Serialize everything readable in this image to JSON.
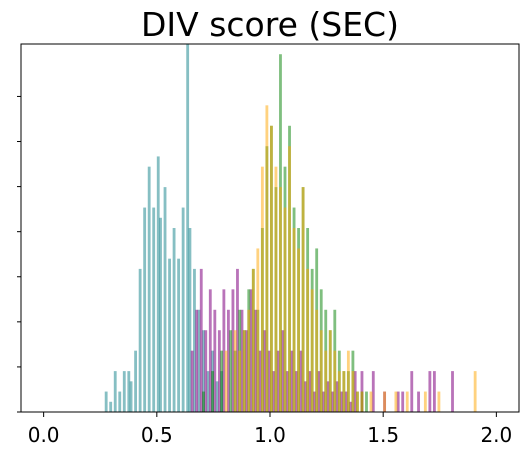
{
  "chart_data": {
    "type": "histogram",
    "title": "DIV score (SEC)",
    "xlabel": "",
    "ylabel": "",
    "xlim": [
      -0.1,
      2.1
    ],
    "ylim": [
      0,
      36
    ],
    "x_ticks": [
      0.0,
      0.5,
      1.0,
      1.5,
      2.0
    ],
    "x_tick_labels": [
      "0.0",
      "0.5",
      "1.0",
      "1.5",
      "2.0"
    ],
    "y_tick_count": 8,
    "y_tick_labels_visible": false,
    "grid": false,
    "legend": null,
    "bin_width": 0.0125,
    "series": [
      {
        "color": "#0e8088",
        "alpha": 0.5,
        "bins": [
          [
            0.27,
            2
          ],
          [
            0.29,
            1
          ],
          [
            0.31,
            4
          ],
          [
            0.33,
            2
          ],
          [
            0.35,
            4
          ],
          [
            0.37,
            4
          ],
          [
            0.38,
            3
          ],
          [
            0.4,
            6
          ],
          [
            0.42,
            14
          ],
          [
            0.44,
            20
          ],
          [
            0.46,
            24
          ],
          [
            0.48,
            20
          ],
          [
            0.5,
            25
          ],
          [
            0.51,
            19
          ],
          [
            0.53,
            22
          ],
          [
            0.55,
            15
          ],
          [
            0.57,
            18
          ],
          [
            0.59,
            15
          ],
          [
            0.61,
            20
          ],
          [
            0.63,
            36
          ],
          [
            0.64,
            18
          ],
          [
            0.66,
            14
          ],
          [
            0.68,
            10
          ],
          [
            0.7,
            8
          ],
          [
            0.72,
            4
          ],
          [
            0.74,
            6
          ],
          [
            0.76,
            3
          ],
          [
            0.78,
            4
          ]
        ]
      },
      {
        "color": "#800080",
        "alpha": 0.55,
        "bins": [
          [
            0.65,
            6
          ],
          [
            0.67,
            10
          ],
          [
            0.69,
            14
          ],
          [
            0.71,
            8
          ],
          [
            0.73,
            12
          ],
          [
            0.75,
            10
          ],
          [
            0.77,
            8
          ],
          [
            0.79,
            12
          ],
          [
            0.81,
            10
          ],
          [
            0.83,
            12
          ],
          [
            0.85,
            14
          ],
          [
            0.87,
            10
          ],
          [
            0.89,
            8
          ],
          [
            0.91,
            12
          ],
          [
            0.93,
            10
          ],
          [
            0.95,
            6
          ],
          [
            0.97,
            8
          ],
          [
            0.99,
            6
          ],
          [
            1.01,
            4
          ],
          [
            1.03,
            6
          ],
          [
            1.05,
            8
          ],
          [
            1.07,
            4
          ],
          [
            1.09,
            6
          ],
          [
            1.11,
            4
          ],
          [
            1.13,
            6
          ],
          [
            1.15,
            3
          ],
          [
            1.17,
            4
          ],
          [
            1.19,
            2
          ],
          [
            1.21,
            4
          ],
          [
            1.23,
            2
          ],
          [
            1.25,
            3
          ],
          [
            1.27,
            2
          ],
          [
            1.29,
            3
          ],
          [
            1.31,
            2
          ],
          [
            1.33,
            2
          ],
          [
            1.35,
            1
          ],
          [
            1.37,
            4
          ],
          [
            1.4,
            4
          ],
          [
            1.45,
            4
          ],
          [
            1.5,
            2
          ],
          [
            1.56,
            2
          ],
          [
            1.58,
            2
          ],
          [
            1.62,
            4
          ],
          [
            1.65,
            2
          ],
          [
            1.7,
            4
          ],
          [
            1.72,
            4
          ],
          [
            1.8,
            4
          ]
        ]
      },
      {
        "color": "#008000",
        "alpha": 0.5,
        "bins": [
          [
            0.7,
            2
          ],
          [
            0.74,
            4
          ],
          [
            0.78,
            6
          ],
          [
            0.82,
            8
          ],
          [
            0.84,
            6
          ],
          [
            0.86,
            10
          ],
          [
            0.88,
            8
          ],
          [
            0.9,
            12
          ],
          [
            0.92,
            14
          ],
          [
            0.94,
            10
          ],
          [
            0.96,
            18
          ],
          [
            0.98,
            26
          ],
          [
            1.0,
            28
          ],
          [
            1.02,
            22
          ],
          [
            1.04,
            35
          ],
          [
            1.06,
            24
          ],
          [
            1.08,
            28
          ],
          [
            1.1,
            20
          ],
          [
            1.12,
            18
          ],
          [
            1.14,
            22
          ],
          [
            1.16,
            18
          ],
          [
            1.18,
            14
          ],
          [
            1.2,
            16
          ],
          [
            1.22,
            12
          ],
          [
            1.24,
            10
          ],
          [
            1.26,
            8
          ],
          [
            1.28,
            10
          ],
          [
            1.3,
            6
          ],
          [
            1.32,
            4
          ],
          [
            1.34,
            4
          ],
          [
            1.36,
            6
          ],
          [
            1.38,
            2
          ],
          [
            1.4,
            2
          ],
          [
            1.42,
            2
          ]
        ]
      },
      {
        "color": "#ffa500",
        "alpha": 0.5,
        "bins": [
          [
            0.8,
            6
          ],
          [
            0.84,
            8
          ],
          [
            0.86,
            6
          ],
          [
            0.88,
            8
          ],
          [
            0.9,
            10
          ],
          [
            0.92,
            14
          ],
          [
            0.94,
            16
          ],
          [
            0.96,
            24
          ],
          [
            0.98,
            30
          ],
          [
            1.0,
            28
          ],
          [
            1.02,
            24
          ],
          [
            1.04,
            22
          ],
          [
            1.06,
            20
          ],
          [
            1.08,
            26
          ],
          [
            1.1,
            18
          ],
          [
            1.12,
            16
          ],
          [
            1.14,
            22
          ],
          [
            1.16,
            14
          ],
          [
            1.18,
            12
          ],
          [
            1.2,
            10
          ],
          [
            1.22,
            8
          ],
          [
            1.24,
            6
          ],
          [
            1.26,
            8
          ],
          [
            1.28,
            6
          ],
          [
            1.3,
            4
          ],
          [
            1.32,
            4
          ],
          [
            1.34,
            6
          ],
          [
            1.36,
            4
          ],
          [
            1.38,
            2
          ],
          [
            1.4,
            2
          ],
          [
            1.44,
            2
          ],
          [
            1.5,
            2
          ],
          [
            1.55,
            2
          ],
          [
            1.6,
            2
          ],
          [
            1.68,
            2
          ],
          [
            1.74,
            2
          ],
          [
            1.9,
            4
          ]
        ]
      }
    ]
  }
}
